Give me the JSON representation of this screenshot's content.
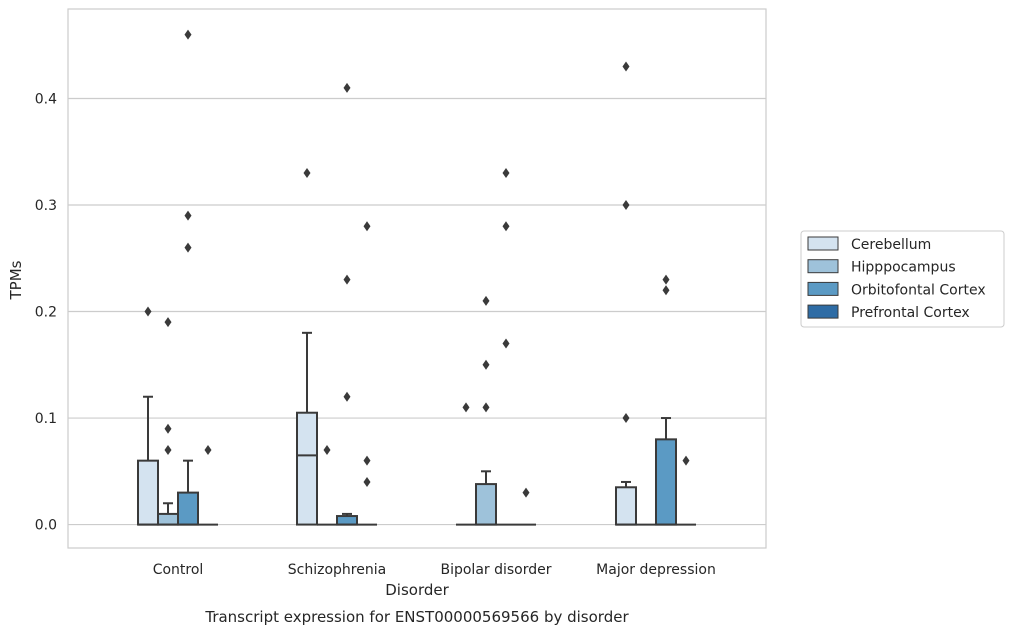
{
  "chart_data": {
    "type": "box",
    "title": "",
    "caption": "Transcript expression for ENST00000569566 by disorder",
    "xlabel": "Disorder",
    "ylabel": "TPMs",
    "ylim": [
      -0.022,
      0.484
    ],
    "yticks": [
      0.0,
      0.1,
      0.2,
      0.3,
      0.4
    ],
    "ytick_labels": [
      "0.0",
      "0.1",
      "0.2",
      "0.3",
      "0.4"
    ],
    "grid": "y",
    "legend_position": "right",
    "categories": [
      "Control",
      "Schizophrenia",
      "Bipolar disorder",
      "Major depression"
    ],
    "series": [
      {
        "name": "Cerebellum",
        "color": "#d4e3f0",
        "boxes": [
          {
            "q1": 0.0,
            "median": 0.0,
            "q3": 0.06,
            "whisker_low": 0.0,
            "whisker_high": 0.12,
            "outliers": [
              0.2
            ]
          },
          {
            "q1": 0.0,
            "median": 0.065,
            "q3": 0.105,
            "whisker_low": 0.0,
            "whisker_high": 0.18,
            "outliers": [
              0.33
            ]
          },
          {
            "q1": 0.0,
            "median": 0.0,
            "q3": 0.0,
            "whisker_low": 0.0,
            "whisker_high": 0.0,
            "outliers": [
              0.11
            ]
          },
          {
            "q1": 0.0,
            "median": 0.0,
            "q3": 0.035,
            "whisker_low": 0.0,
            "whisker_high": 0.04,
            "outliers": [
              0.1,
              0.3,
              0.43
            ]
          }
        ]
      },
      {
        "name": "Hipppocampus",
        "color": "#9ec2da",
        "boxes": [
          {
            "q1": 0.0,
            "median": 0.0,
            "q3": 0.01,
            "whisker_low": 0.0,
            "whisker_high": 0.02,
            "outliers": [
              0.07,
              0.09,
              0.19
            ]
          },
          {
            "q1": 0.0,
            "median": 0.0,
            "q3": 0.0,
            "whisker_low": 0.0,
            "whisker_high": 0.0,
            "outliers": [
              0.07
            ]
          },
          {
            "q1": 0.0,
            "median": 0.0,
            "q3": 0.038,
            "whisker_low": 0.0,
            "whisker_high": 0.05,
            "outliers": [
              0.11,
              0.15,
              0.21
            ]
          },
          {
            "q1": 0.0,
            "median": 0.0,
            "q3": 0.0,
            "whisker_low": 0.0,
            "whisker_high": 0.0,
            "outliers": []
          }
        ]
      },
      {
        "name": "Orbitofontal Cortex",
        "color": "#5b9ac4",
        "boxes": [
          {
            "q1": 0.0,
            "median": 0.0,
            "q3": 0.03,
            "whisker_low": 0.0,
            "whisker_high": 0.06,
            "outliers": [
              0.26,
              0.29,
              0.46
            ]
          },
          {
            "q1": 0.0,
            "median": 0.0,
            "q3": 0.008,
            "whisker_low": 0.0,
            "whisker_high": 0.01,
            "outliers": [
              0.12,
              0.23,
              0.41
            ]
          },
          {
            "q1": 0.0,
            "median": 0.0,
            "q3": 0.0,
            "whisker_low": 0.0,
            "whisker_high": 0.0,
            "outliers": [
              0.17,
              0.28,
              0.33
            ]
          },
          {
            "q1": 0.0,
            "median": 0.0,
            "q3": 0.08,
            "whisker_low": 0.0,
            "whisker_high": 0.1,
            "outliers": [
              0.22,
              0.23
            ]
          }
        ]
      },
      {
        "name": "Prefrontal Cortex",
        "color": "#2e6ca5",
        "boxes": [
          {
            "q1": 0.0,
            "median": 0.0,
            "q3": 0.0,
            "whisker_low": 0.0,
            "whisker_high": 0.0,
            "outliers": [
              0.07
            ]
          },
          {
            "q1": 0.0,
            "median": 0.0,
            "q3": 0.0,
            "whisker_low": 0.0,
            "whisker_high": 0.0,
            "outliers": [
              0.04,
              0.06,
              0.28
            ]
          },
          {
            "q1": 0.0,
            "median": 0.0,
            "q3": 0.0,
            "whisker_low": 0.0,
            "whisker_high": 0.0,
            "outliers": [
              0.03
            ]
          },
          {
            "q1": 0.0,
            "median": 0.0,
            "q3": 0.0,
            "whisker_low": 0.0,
            "whisker_high": 0.0,
            "outliers": [
              0.06
            ]
          }
        ]
      }
    ]
  }
}
